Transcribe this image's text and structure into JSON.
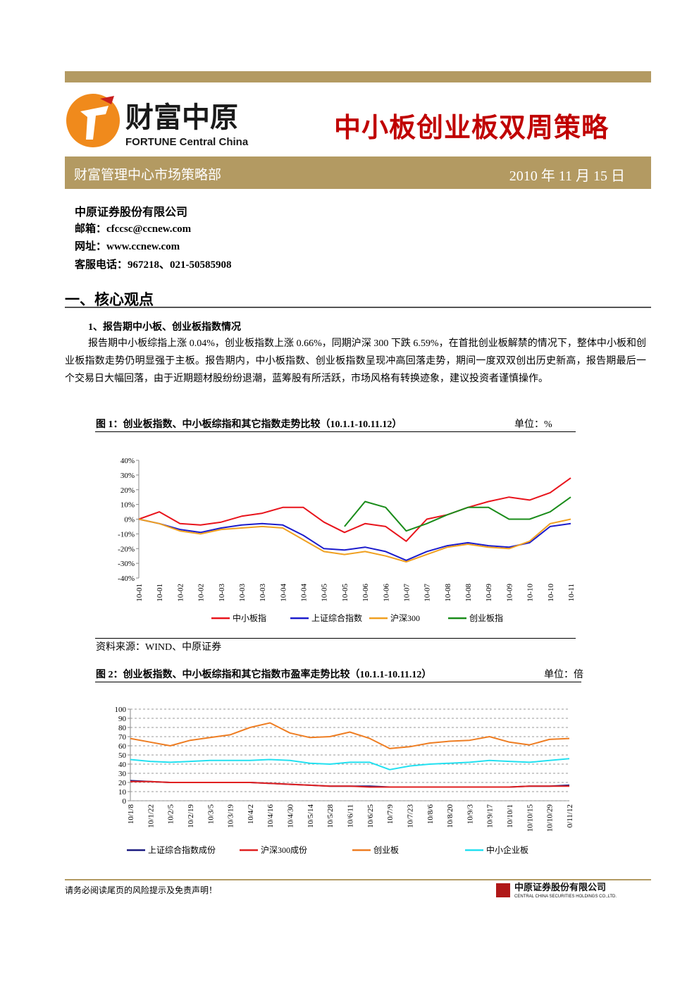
{
  "header": {
    "logo_cn": "财富中原",
    "logo_en": "FORTUNE Central China",
    "title": "中小板创业板双周策略",
    "department": "财富管理中心市场策略部",
    "date": "2010 年 11 月 15 日"
  },
  "contact": {
    "company": "中原证券股份有限公司",
    "email": "邮箱：cfccsc@ccnew.com",
    "website": "网址：www.ccnew.com",
    "phone": "客服电话：967218、021-50585908"
  },
  "section": {
    "heading": "一、核心观点",
    "subheading": "1、报告期中小板、创业板指数情况",
    "paragraph": "报告期中小板综指上涨 0.04%，创业板指数上涨 0.66%，同期沪深 300 下跌 6.59%，在首批创业板解禁的情况下，整体中小板和创业板指数走势仍明显强于主板。报告期内，中小板指数、创业板指数呈现冲高回落走势，期间一度双双创出历史新高，报告期最后一个交易日大幅回落，由于近期题材股纷纷退潮，蓝筹股有所活跃，市场风格有转换迹象，建议投资者谨慎操作。"
  },
  "chart_data": [
    {
      "type": "line",
      "title": "图 1：创业板指数、中小板综指和其它指数走势比较（10.1.1-10.11.12）",
      "unit": "单位：%",
      "source": "资料来源：WIND、中原证券",
      "categories": [
        "10-01",
        "10-01",
        "10-02",
        "10-02",
        "10-03",
        "10-03",
        "10-03",
        "10-04",
        "10-04",
        "10-05",
        "10-05",
        "10-06",
        "10-06",
        "10-07",
        "10-07",
        "10-08",
        "10-08",
        "10-09",
        "10-09",
        "10-10",
        "10-10",
        "10-11"
      ],
      "series": [
        {
          "name": "中小板指",
          "color": "#e8141c",
          "values": [
            0,
            5,
            -3,
            -4,
            -2,
            2,
            4,
            8,
            8,
            -2,
            -9,
            -3,
            -5,
            -15,
            0,
            3,
            8,
            12,
            15,
            13,
            18,
            28
          ]
        },
        {
          "name": "上证综合指数",
          "color": "#1c1ccc",
          "values": [
            0,
            -3,
            -7,
            -9,
            -6,
            -4,
            -3,
            -4,
            -11,
            -20,
            -21,
            -19,
            -22,
            -28,
            -22,
            -18,
            -16,
            -18,
            -19,
            -16,
            -5,
            -3
          ]
        },
        {
          "name": "沪深300",
          "color": "#f0a020",
          "values": [
            0,
            -3,
            -8,
            -10,
            -7,
            -6,
            -5,
            -6,
            -14,
            -22,
            -24,
            -22,
            -25,
            -29,
            -24,
            -19,
            -17,
            -19,
            -20,
            -15,
            -3,
            0
          ]
        },
        {
          "name": "创业板指",
          "color": "#1a8c1a",
          "values": [
            null,
            null,
            null,
            null,
            null,
            null,
            null,
            null,
            null,
            null,
            -5,
            12,
            8,
            -8,
            -3,
            3,
            8,
            8,
            0,
            0,
            5,
            15
          ]
        }
      ],
      "ylim": [
        -40,
        40
      ],
      "yticks": [
        {
          "value": -40,
          "label": "-40%"
        },
        {
          "value": -30,
          "label": "-30%"
        },
        {
          "value": -20,
          "label": "-20%"
        },
        {
          "value": -10,
          "label": "-10%"
        },
        {
          "value": 0,
          "label": "0%"
        },
        {
          "value": 10,
          "label": "10%"
        },
        {
          "value": 20,
          "label": "20%"
        },
        {
          "value": 30,
          "label": "30%"
        },
        {
          "value": 40,
          "label": "40%"
        }
      ],
      "grid": false
    },
    {
      "type": "line",
      "title": "图 2：创业板指数、中小板综指和其它指数市盈率走势比较（10.1.1-10.11.12）",
      "unit": "单位：倍",
      "categories": [
        "10/1/8",
        "10/1/22",
        "10/2/5",
        "10/2/19",
        "10/3/5",
        "10/3/19",
        "10/4/2",
        "10/4/16",
        "10/4/30",
        "10/5/14",
        "10/5/28",
        "10/6/11",
        "10/6/25",
        "10/7/9",
        "10/7/23",
        "10/8/6",
        "10/8/20",
        "10/9/3",
        "10/9/17",
        "10/10/1",
        "10/10/15",
        "10/10/29",
        "0/11/12"
      ],
      "series": [
        {
          "name": "上证综合指数成份",
          "color": "#1a1a80",
          "values": [
            22,
            21,
            20,
            20,
            20,
            20,
            20,
            19,
            18,
            17,
            16,
            16,
            16,
            15,
            15,
            15,
            15,
            15,
            15,
            15,
            16,
            16,
            17
          ]
        },
        {
          "name": "沪深300成份",
          "color": "#e02020",
          "values": [
            21,
            21,
            20,
            20,
            20,
            20,
            20,
            19,
            18,
            17,
            16,
            16,
            15,
            15,
            15,
            15,
            15,
            15,
            15,
            15,
            16,
            16,
            16
          ]
        },
        {
          "name": "创业板",
          "color": "#ee7d22",
          "values": [
            68,
            64,
            60,
            66,
            69,
            72,
            80,
            85,
            74,
            69,
            70,
            75,
            68,
            57,
            59,
            63,
            65,
            66,
            70,
            64,
            61,
            67,
            68
          ]
        },
        {
          "name": "中小企业板",
          "color": "#22e0f0",
          "values": [
            45,
            43,
            42,
            43,
            44,
            44,
            44,
            45,
            44,
            41,
            40,
            42,
            42,
            34,
            38,
            40,
            41,
            42,
            44,
            43,
            42,
            44,
            46
          ]
        }
      ],
      "ylim": [
        0,
        100
      ],
      "yticks": [
        0,
        10,
        20,
        30,
        40,
        50,
        60,
        70,
        80,
        90,
        100
      ],
      "grid": true
    }
  ],
  "footer": {
    "disclaimer": "请务必阅读尾页的风险提示及免责声明！",
    "company_cn": "中原证券股份有限公司",
    "company_en": "CENTRAL CHINA SECURITIES HOLDINGS CO.,LTD."
  }
}
